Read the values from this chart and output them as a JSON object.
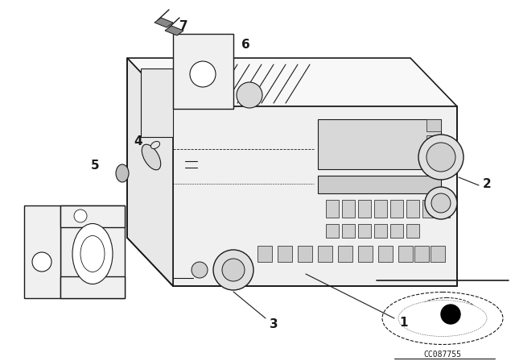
{
  "background_color": "#ffffff",
  "line_color": "#1a1a1a",
  "fig_width": 6.4,
  "fig_height": 4.48,
  "dpi": 100,
  "part_number": "CC087755"
}
